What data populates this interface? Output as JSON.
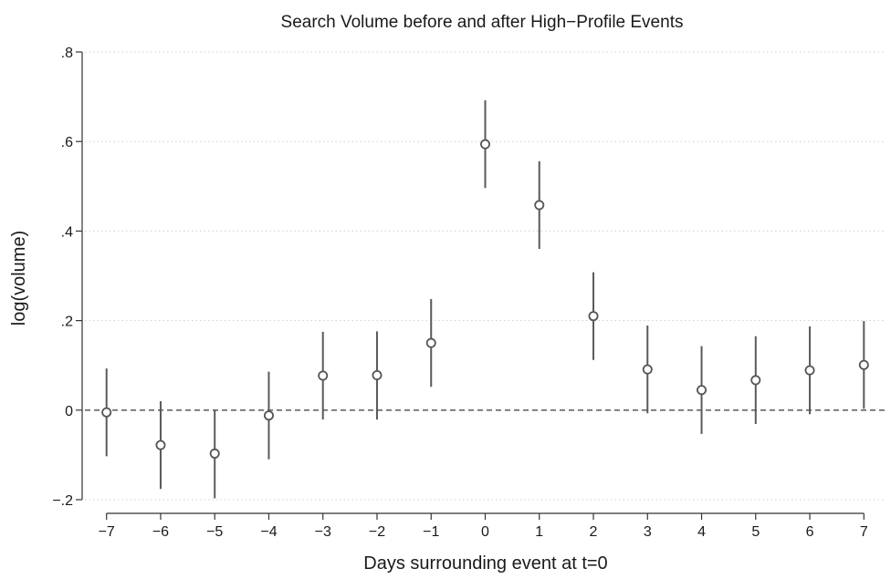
{
  "chart_data": {
    "type": "scatter",
    "title": "Search Volume before and after High−Profile Events",
    "xlabel": "Days surrounding event at t=0",
    "ylabel": "log(volume)",
    "xlim": [
      -7.4,
      7.4
    ],
    "ylim": [
      -0.2,
      0.8
    ],
    "x_ticks": [
      -7,
      -6,
      -5,
      -4,
      -3,
      -2,
      -1,
      0,
      1,
      2,
      3,
      4,
      5,
      6,
      7
    ],
    "x_tick_labels": [
      "−7",
      "−6",
      "−5",
      "−4",
      "−3",
      "−2",
      "−1",
      "0",
      "1",
      "2",
      "3",
      "4",
      "5",
      "6",
      "7"
    ],
    "y_ticks": [
      -0.2,
      0,
      0.2,
      0.4,
      0.6,
      0.8
    ],
    "y_tick_labels": [
      "−.2",
      "0",
      ".2",
      ".4",
      ".6",
      ".8"
    ],
    "grid": "horizontal dotted",
    "reference_line_y": 0,
    "points": [
      {
        "x": -7,
        "y": -0.005,
        "lo": -0.103,
        "hi": 0.093
      },
      {
        "x": -6,
        "y": -0.078,
        "lo": -0.176,
        "hi": 0.02
      },
      {
        "x": -5,
        "y": -0.097,
        "lo": -0.197,
        "hi": 0.0
      },
      {
        "x": -4,
        "y": -0.012,
        "lo": -0.11,
        "hi": 0.086
      },
      {
        "x": -3,
        "y": 0.077,
        "lo": -0.021,
        "hi": 0.175
      },
      {
        "x": -2,
        "y": 0.078,
        "lo": -0.021,
        "hi": 0.176
      },
      {
        "x": -1,
        "y": 0.15,
        "lo": 0.052,
        "hi": 0.248
      },
      {
        "x": 0,
        "y": 0.594,
        "lo": 0.496,
        "hi": 0.692
      },
      {
        "x": 1,
        "y": 0.458,
        "lo": 0.36,
        "hi": 0.556
      },
      {
        "x": 2,
        "y": 0.21,
        "lo": 0.112,
        "hi": 0.308
      },
      {
        "x": 3,
        "y": 0.091,
        "lo": -0.007,
        "hi": 0.189
      },
      {
        "x": 4,
        "y": 0.045,
        "lo": -0.053,
        "hi": 0.143
      },
      {
        "x": 5,
        "y": 0.067,
        "lo": -0.031,
        "hi": 0.165
      },
      {
        "x": 6,
        "y": 0.089,
        "lo": -0.009,
        "hi": 0.187
      },
      {
        "x": 7,
        "y": 0.101,
        "lo": 0.003,
        "hi": 0.199
      }
    ],
    "colors": {
      "marker": "#555555",
      "ci_line": "#5a5a5a",
      "axis": "#333333",
      "grid": "#cfcfcf",
      "reference": "#666666"
    }
  }
}
